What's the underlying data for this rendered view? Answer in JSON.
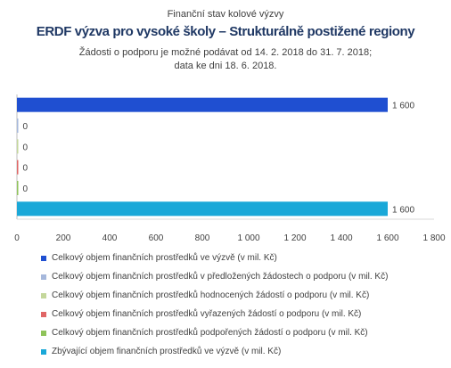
{
  "chart_data": {
    "type": "bar",
    "orientation": "horizontal",
    "supertitle": "Finanční stav kolové výzvy",
    "title": "ERDF výzva pro vysoké školy – Strukturálně postižené regiony",
    "subtitle_lines": [
      "Žádosti o podporu je možné  podávat od 14. 2. 2018 do 31. 7. 2018;",
      "data ke dni 18. 6. 2018."
    ],
    "categories": [
      "Celkový objem finančních prostředků ve výzvě (v mil. Kč)",
      "Celkový objem finančních prostředků v předložených žádostech o podporu (v mil. Kč)",
      "Celkový objem finančních prostředků hodnocených žádostí o podporu (v mil. Kč)",
      "Celkový objem finančních prostředků vyřazených žádostí o podporu (v mil. Kč)",
      "Celkový objem finančních prostředků podpořených žádostí o podporu (v mil. Kč)",
      "Zbývající objem finančních prostředků ve výzvě (v mil. Kč)"
    ],
    "values": [
      1600,
      0,
      0,
      0,
      0,
      1600
    ],
    "value_labels": [
      "1 600",
      "0",
      "0",
      "0",
      "0",
      "1 600"
    ],
    "colors": [
      "#1f4fd1",
      "#a6b8dc",
      "#c4d79b",
      "#e06666",
      "#8fc35a",
      "#1aa8d8"
    ],
    "xlim": [
      0,
      1800
    ],
    "xticks": [
      0,
      200,
      400,
      600,
      800,
      1000,
      1200,
      1400,
      1600,
      1800
    ],
    "xtick_labels": [
      "0",
      "200",
      "400",
      "600",
      "800",
      "1 000",
      "1 200",
      "1 400",
      "1 600",
      "1 800"
    ],
    "xlabel": "",
    "ylabel": "",
    "grid": false,
    "legend_position": "bottom"
  }
}
